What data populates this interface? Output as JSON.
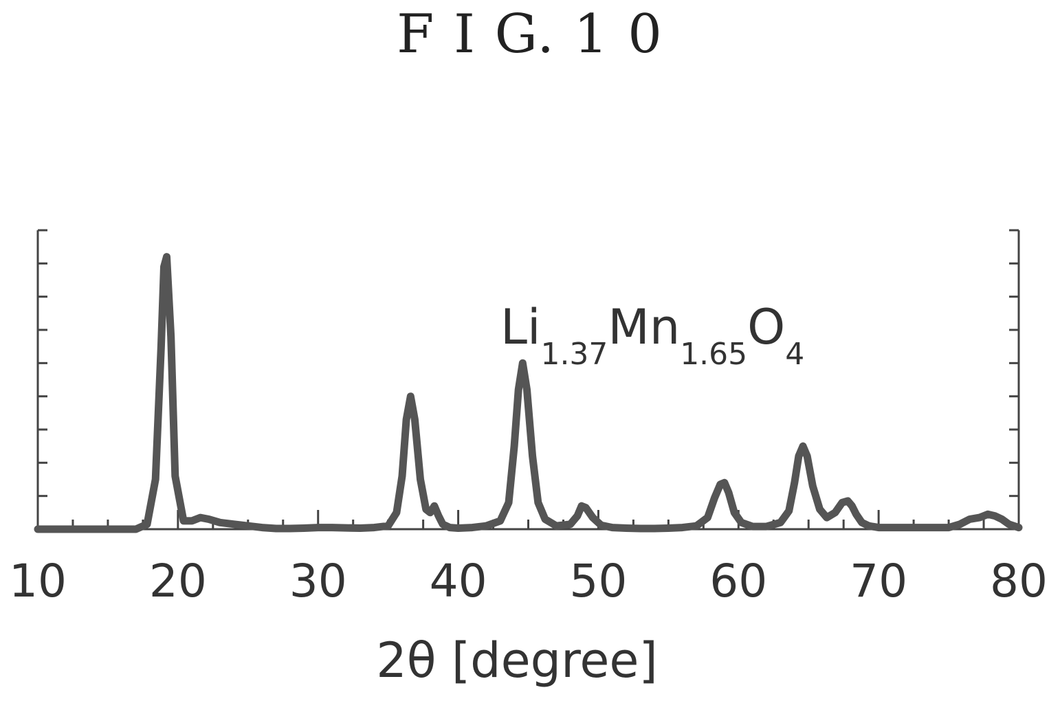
{
  "figure": {
    "title": "F I G. 1 0"
  },
  "chart_data": {
    "type": "line",
    "title": "",
    "xlabel": "2θ [degree]",
    "ylabel": "",
    "xlim": [
      10,
      80
    ],
    "ylim": [
      0,
      9
    ],
    "xticks": [
      10,
      20,
      30,
      40,
      50,
      60,
      70,
      80
    ],
    "xticks_minor": [
      12.5,
      15,
      17.5,
      22.5,
      25,
      27.5,
      32.5,
      35,
      37.5,
      42.5,
      45,
      47.5,
      52.5,
      55,
      57.5,
      62.5,
      65,
      67.5,
      72.5,
      75,
      77.5
    ],
    "yticks": [
      1,
      2,
      3,
      4,
      5,
      6,
      7,
      8,
      9
    ],
    "ytick_labels_shown": false,
    "grid": false,
    "annotation": {
      "text": "Li",
      "sub1": "1.37",
      "text2": "Mn",
      "sub2": "1.65",
      "text3": "O",
      "sub3": "4"
    },
    "series": [
      {
        "x": [
          10,
          17,
          17.8,
          18.4,
          18.8,
          19.0,
          19.2,
          19.5,
          19.8,
          20.4,
          21,
          21.6,
          22.2,
          23,
          24,
          25,
          26,
          27,
          28,
          29,
          30,
          31,
          32,
          33,
          34,
          35,
          35.6,
          36.0,
          36.3,
          36.6,
          36.9,
          37.3,
          37.7,
          38.0,
          38.3,
          38.6,
          38.9,
          39.4,
          40,
          41,
          42,
          43,
          43.6,
          44.0,
          44.3,
          44.6,
          44.9,
          45.3,
          45.7,
          46.2,
          47,
          48,
          48.5,
          48.8,
          49.1,
          49.6,
          50.2,
          51,
          52,
          53,
          54,
          55,
          56,
          57,
          57.8,
          58.3,
          58.7,
          59.0,
          59.3,
          59.7,
          60.2,
          61,
          62,
          63,
          63.6,
          64.0,
          64.3,
          64.6,
          64.9,
          65.3,
          65.8,
          66.3,
          66.9,
          67.4,
          67.8,
          68.1,
          68.4,
          68.8,
          69.3,
          70,
          71,
          72,
          73,
          74,
          75,
          75.8,
          76.5,
          77.2,
          77.8,
          78.3,
          78.8,
          79.3,
          80
        ],
        "y": [
          0.0,
          0.0,
          0.15,
          1.5,
          5.5,
          7.9,
          8.2,
          5.8,
          1.6,
          0.25,
          0.25,
          0.35,
          0.3,
          0.2,
          0.15,
          0.1,
          0.05,
          0.02,
          0.02,
          0.03,
          0.05,
          0.05,
          0.04,
          0.03,
          0.05,
          0.1,
          0.5,
          1.6,
          3.3,
          4.0,
          3.3,
          1.5,
          0.6,
          0.5,
          0.7,
          0.4,
          0.15,
          0.05,
          0.03,
          0.05,
          0.1,
          0.25,
          0.8,
          2.5,
          4.2,
          5.0,
          4.2,
          2.2,
          0.8,
          0.3,
          0.1,
          0.15,
          0.4,
          0.7,
          0.65,
          0.35,
          0.12,
          0.05,
          0.03,
          0.02,
          0.02,
          0.03,
          0.05,
          0.1,
          0.35,
          0.95,
          1.35,
          1.4,
          1.1,
          0.5,
          0.2,
          0.08,
          0.08,
          0.2,
          0.55,
          1.4,
          2.2,
          2.5,
          2.2,
          1.3,
          0.6,
          0.35,
          0.5,
          0.8,
          0.85,
          0.7,
          0.45,
          0.2,
          0.1,
          0.05,
          0.05,
          0.05,
          0.05,
          0.05,
          0.05,
          0.15,
          0.3,
          0.35,
          0.45,
          0.4,
          0.3,
          0.15,
          0.05
        ]
      }
    ]
  }
}
